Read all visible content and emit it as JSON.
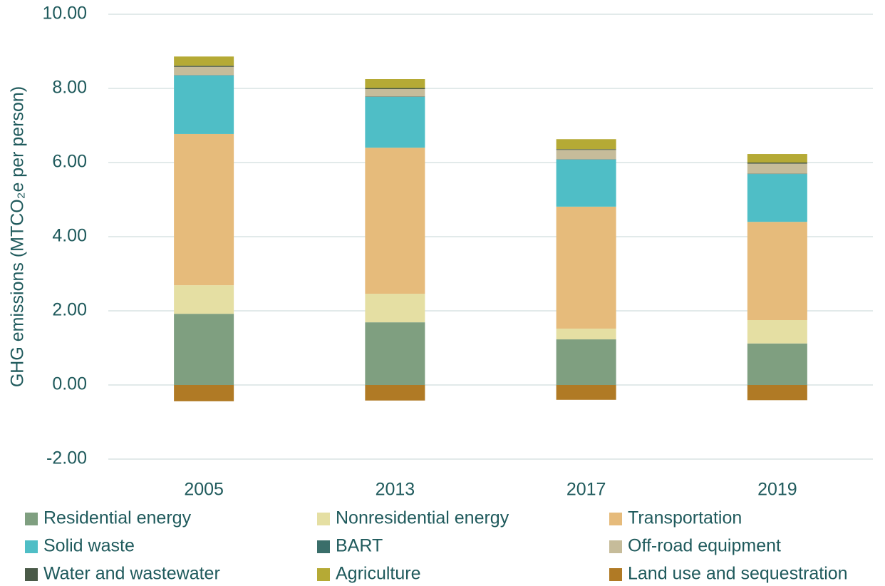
{
  "chart_data": {
    "type": "stacked_bar",
    "y_label": "GHG emissions (MTCO₂e per person)",
    "categories": [
      "2005",
      "2013",
      "2017",
      "2019"
    ],
    "series": [
      {
        "name": "Residential energy",
        "color": "#7f9f80",
        "values": [
          1.92,
          1.69,
          1.23,
          1.12
        ]
      },
      {
        "name": "Nonresidential energy",
        "color": "#e5dfa3",
        "values": [
          0.77,
          0.77,
          0.29,
          0.63
        ]
      },
      {
        "name": "Transportation",
        "color": "#e6bb7b",
        "values": [
          4.08,
          3.94,
          3.29,
          2.65
        ]
      },
      {
        "name": "Solid waste",
        "color": "#4fbec6",
        "values": [
          1.58,
          1.37,
          1.27,
          1.29
        ]
      },
      {
        "name": "BART",
        "color": "#3a6e6a",
        "values": [
          0.01,
          0.01,
          0.01,
          0.01
        ]
      },
      {
        "name": "Off-road equipment",
        "color": "#c6bc9a",
        "values": [
          0.22,
          0.2,
          0.25,
          0.27
        ]
      },
      {
        "name": "Water and wastewater",
        "color": "#4a5a48",
        "values": [
          0.03,
          0.03,
          0.02,
          0.03
        ]
      },
      {
        "name": "Agriculture",
        "color": "#b5aa35",
        "values": [
          0.25,
          0.24,
          0.27,
          0.23
        ]
      },
      {
        "name": "Land use and sequestration",
        "color": "#b07a25",
        "values": [
          -0.44,
          -0.42,
          -0.4,
          -0.41
        ]
      }
    ],
    "ylim": [
      -2,
      10
    ],
    "yticks": [
      {
        "value": -2,
        "label": "-2.00"
      },
      {
        "value": 0,
        "label": "0.00"
      },
      {
        "value": 2,
        "label": "2.00"
      },
      {
        "value": 4,
        "label": "4.00"
      },
      {
        "value": 6,
        "label": "6.00"
      },
      {
        "value": 8,
        "label": "8.00"
      },
      {
        "value": 10,
        "label": "10.00"
      }
    ],
    "grid": true
  }
}
